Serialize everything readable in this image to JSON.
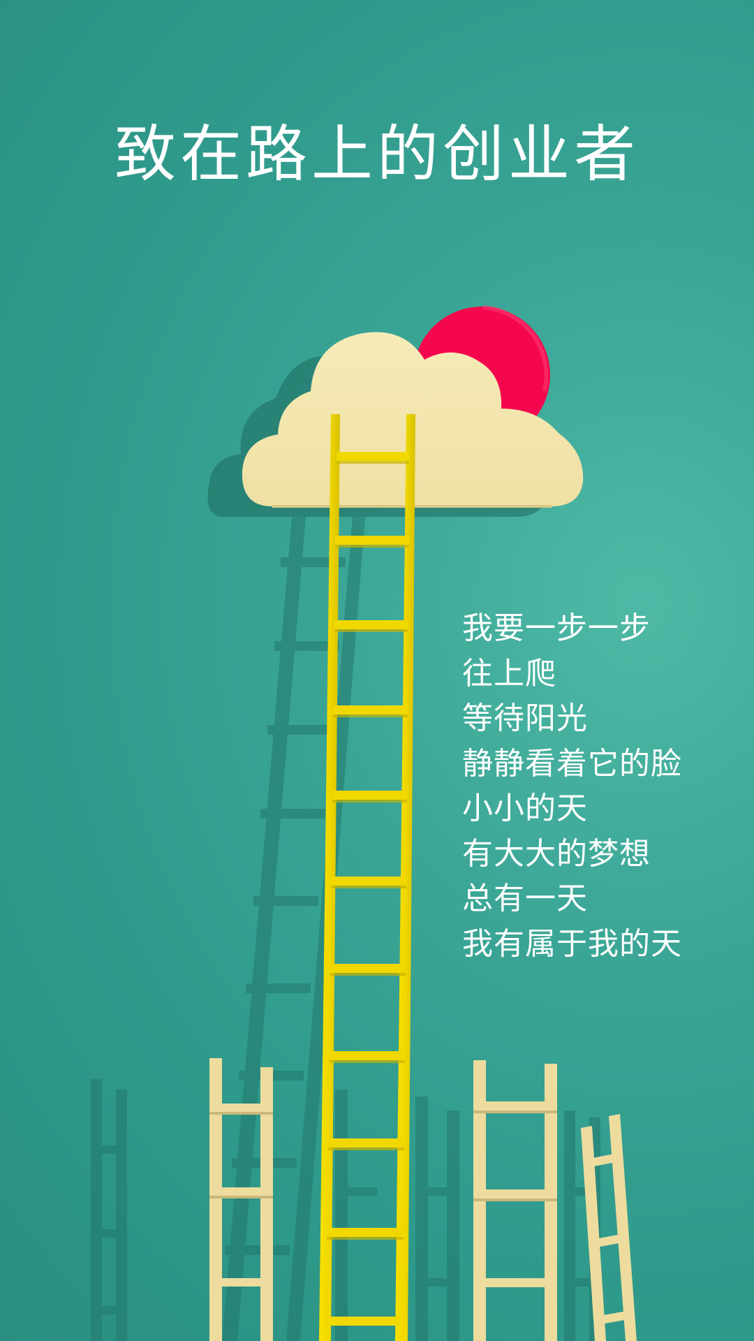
{
  "poster": {
    "title": "致在路上的创业者",
    "poem_lines": [
      "我要一步一步",
      "往上爬",
      "等待阳光",
      "静静看着它的脸",
      "小小的天",
      "有大大的梦想",
      "总有一天",
      "我有属于我的天"
    ]
  },
  "colors": {
    "background": "#3aa595",
    "cloud": "#f4e7b0",
    "sun": "#f5074f",
    "main_ladder": "#f0d800",
    "small_ladders": "#eddc9e",
    "text": "#ffffff"
  },
  "illustration": {
    "elements": [
      "cloud-icon",
      "sun-icon",
      "yellow-ladder",
      "cream-ladder-left",
      "cream-ladder-right",
      "cream-ladder-far-right",
      "shadows"
    ]
  }
}
